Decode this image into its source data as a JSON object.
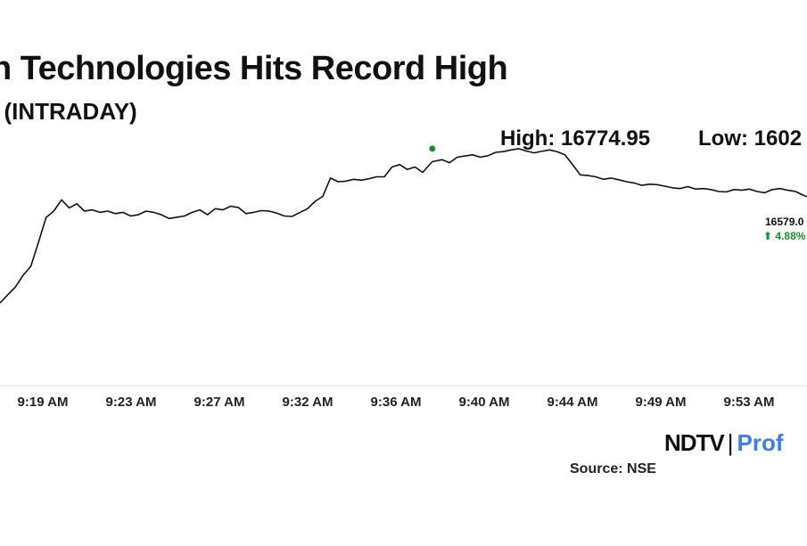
{
  "header": {
    "title": "n Technologies Hits Record High",
    "subtitle": "I (INTRADAY)"
  },
  "annotations": {
    "high_text": "High: 16774.95",
    "low_text": "Low: 1602",
    "last_value": "16579.0",
    "last_change": "⬆ 4.88%"
  },
  "footer": {
    "brand_ndtv": "NDTV",
    "brand_sep": "|",
    "brand_profit": "Prof",
    "source": "Source: NSE"
  },
  "colors": {
    "line": "#111111",
    "high_marker": "#1a8f2e",
    "positive": "#1a8f2e",
    "brand_accent": "#3d7ee8",
    "axis": "#dddddd"
  },
  "chart_data": {
    "type": "line",
    "title": "n Technologies Hits Record High",
    "subtitle": "I (INTRADAY)",
    "x_ticks": [
      "9:19 AM",
      "9:23 AM",
      "9:27 AM",
      "9:32 AM",
      "9:36 AM",
      "9:40 AM",
      "9:44 AM",
      "9:49 AM",
      "9:53 AM"
    ],
    "x_start_minutes": 556,
    "x_end_minutes": 598,
    "ylim": [
      16000,
      16800
    ],
    "grid": false,
    "high": {
      "value": 16774.95,
      "time_minutes": 578.5
    },
    "last": {
      "value": 16579.0,
      "change_pct": 4.88
    },
    "series": [
      {
        "name": "",
        "x": [
          556.0,
          556.4,
          556.8,
          557.2,
          557.6,
          558.0,
          558.4,
          558.8,
          559.2,
          559.6,
          560.0,
          560.4,
          560.8,
          561.2,
          561.6,
          562.0,
          562.4,
          562.8,
          563.2,
          563.6,
          564.0,
          564.4,
          564.8,
          565.2,
          565.6,
          566.0,
          566.4,
          566.8,
          567.2,
          567.6,
          568.0,
          568.4,
          568.8,
          569.2,
          569.6,
          570.0,
          570.4,
          570.8,
          571.2,
          571.6,
          572.0,
          572.4,
          572.8,
          573.2,
          573.6,
          574.0,
          574.4,
          574.8,
          575.2,
          575.6,
          576.0,
          576.4,
          576.8,
          577.2,
          577.6,
          578.0,
          578.5,
          579.0,
          579.4,
          579.8,
          580.2,
          580.6,
          581.0,
          581.4,
          581.8,
          582.2,
          582.6,
          583.0,
          583.4,
          583.8,
          584.2,
          584.6,
          585.0,
          585.4,
          585.8,
          586.2,
          586.6,
          587.0,
          587.4,
          587.8,
          588.2,
          588.6,
          589.0,
          589.4,
          589.8,
          590.2,
          590.6,
          591.0,
          591.4,
          591.8,
          592.2,
          592.6,
          593.0,
          593.4,
          593.8,
          594.2,
          594.6,
          595.0,
          595.4,
          595.8,
          596.2,
          596.6,
          597.0,
          597.4,
          597.8,
          598.0
        ],
        "values": [
          16145,
          16178,
          16210,
          16258,
          16294,
          16392,
          16494,
          16520,
          16566,
          16533,
          16550,
          16520,
          16525,
          16515,
          16520,
          16510,
          16515,
          16500,
          16505,
          16520,
          16515,
          16505,
          16490,
          16495,
          16500,
          16515,
          16525,
          16505,
          16530,
          16525,
          16540,
          16535,
          16510,
          16515,
          16522,
          16520,
          16512,
          16500,
          16498,
          16514,
          16530,
          16560,
          16580,
          16655,
          16640,
          16642,
          16650,
          16646,
          16652,
          16660,
          16660,
          16700,
          16710,
          16690,
          16700,
          16678,
          16722,
          16730,
          16718,
          16740,
          16745,
          16750,
          16740,
          16746,
          16760,
          16763,
          16770,
          16775,
          16765,
          16758,
          16764,
          16770,
          16762,
          16750,
          16710,
          16668,
          16665,
          16660,
          16650,
          16655,
          16648,
          16640,
          16635,
          16625,
          16630,
          16628,
          16622,
          16615,
          16612,
          16620,
          16610,
          16612,
          16608,
          16600,
          16598,
          16608,
          16605,
          16610,
          16600,
          16595,
          16608,
          16612,
          16605,
          16600,
          16585,
          16579
        ]
      }
    ]
  }
}
